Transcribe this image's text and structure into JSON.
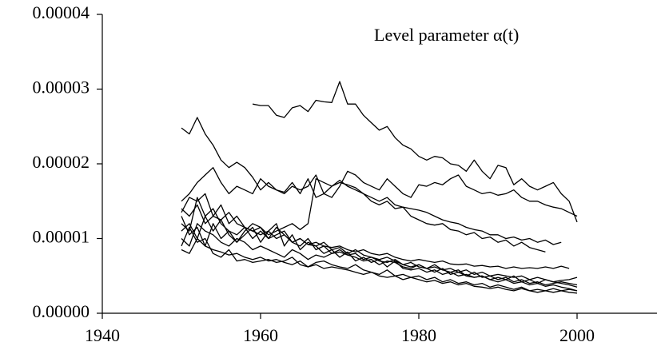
{
  "chart_data": {
    "type": "line",
    "annotation": "Level parameter α(t)",
    "x": [
      1950,
      1951,
      1952,
      1953,
      1954,
      1955,
      1956,
      1957,
      1958,
      1959,
      1960,
      1961,
      1962,
      1963,
      1964,
      1965,
      1966,
      1967,
      1968,
      1969,
      1970,
      1971,
      1972,
      1973,
      1974,
      1975,
      1976,
      1977,
      1978,
      1979,
      1980,
      1981,
      1982,
      1983,
      1984,
      1985,
      1986,
      1987,
      1988,
      1989,
      1990,
      1991,
      1992,
      1993,
      1994,
      1995,
      1996,
      1997,
      1998,
      1999,
      2000
    ],
    "xlim": [
      1940,
      2010
    ],
    "xticks": [
      1940,
      1960,
      1980,
      2000
    ],
    "ylim": [
      0,
      4e-05
    ],
    "yticks": [
      {
        "value": 0,
        "label": "0.00000"
      },
      1e-05,
      2e-05,
      3e-05,
      4e-05
    ],
    "series": [
      {
        "color": "#000000",
        "values": [
          null,
          null,
          null,
          null,
          null,
          null,
          null,
          null,
          null,
          2.8e-05,
          2.78e-05,
          2.78e-05,
          2.65e-05,
          2.62e-05,
          2.75e-05,
          2.78e-05,
          2.7e-05,
          2.85e-05,
          2.83e-05,
          2.82e-05,
          3.1e-05,
          2.8e-05,
          2.8e-05,
          2.65e-05,
          2.55e-05,
          2.45e-05,
          2.5e-05,
          2.35e-05,
          2.25e-05,
          2.2e-05,
          2.1e-05,
          2.05e-05,
          2.1e-05,
          2.08e-05,
          2e-05,
          1.98e-05,
          1.9e-05,
          2.05e-05,
          1.9e-05,
          1.8e-05,
          1.98e-05,
          1.95e-05,
          1.72e-05,
          1.8e-05,
          1.7e-05,
          1.65e-05,
          1.7e-05,
          1.75e-05,
          1.6e-05,
          1.5e-05,
          1.22e-05
        ]
      },
      {
        "color": "#000000",
        "values": [
          2.48e-05,
          2.4e-05,
          2.62e-05,
          2.4e-05,
          2.25e-05,
          2.05e-05,
          1.95e-05,
          2.02e-05,
          1.95e-05,
          1.82e-05,
          1.65e-05,
          1.75e-05,
          1.65e-05,
          1.62e-05,
          1.75e-05,
          1.6e-05,
          1.8e-05,
          1.55e-05,
          1.6e-05,
          1.7e-05,
          1.75e-05,
          1.72e-05,
          1.68e-05,
          1.6e-05,
          1.5e-05,
          1.45e-05,
          1.5e-05,
          1.4e-05,
          1.42e-05,
          1.3e-05,
          1.25e-05,
          1.2e-05,
          1.18e-05,
          1.2e-05,
          1.12e-05,
          1.1e-05,
          1.05e-05,
          1.08e-05,
          1e-05,
          1.02e-05,
          9.5e-06,
          9.8e-06,
          9e-06,
          9.5e-06,
          8.8e-06,
          8.5e-06,
          8.2e-06,
          null,
          null,
          null,
          null
        ]
      },
      {
        "color": "#000000",
        "values": [
          1.5e-05,
          1.6e-05,
          1.75e-05,
          1.85e-05,
          1.95e-05,
          1.75e-05,
          1.6e-05,
          1.7e-05,
          1.65e-05,
          1.6e-05,
          1.8e-05,
          1.7e-05,
          1.65e-05,
          1.6e-05,
          1.7e-05,
          1.65e-05,
          1.7e-05,
          1.85e-05,
          1.6e-05,
          1.55e-05,
          1.7e-05,
          1.9e-05,
          1.85e-05,
          1.75e-05,
          1.7e-05,
          1.65e-05,
          1.8e-05,
          1.7e-05,
          1.6e-05,
          1.55e-05,
          1.72e-05,
          1.7e-05,
          1.75e-05,
          1.72e-05,
          1.8e-05,
          1.85e-05,
          1.7e-05,
          1.65e-05,
          1.6e-05,
          1.62e-05,
          1.58e-05,
          1.6e-05,
          1.65e-05,
          1.55e-05,
          1.5e-05,
          1.5e-05,
          1.45e-05,
          1.42e-05,
          1.4e-05,
          1.35e-05,
          1.3e-05
        ]
      },
      {
        "color": "#000000",
        "values": [
          1.4e-05,
          1.3e-05,
          1.45e-05,
          1.2e-05,
          1.3e-05,
          1.25e-05,
          1.35e-05,
          1.2e-05,
          1.15e-05,
          1.1e-05,
          1.15e-05,
          1.05e-05,
          1.1e-05,
          1.15e-05,
          1.2e-05,
          1.12e-05,
          1.2e-05,
          1.8e-05,
          1.75e-05,
          1.7e-05,
          1.78e-05,
          1.7e-05,
          1.65e-05,
          1.6e-05,
          1.55e-05,
          1.5e-05,
          1.55e-05,
          1.45e-05,
          1.42e-05,
          1.4e-05,
          1.38e-05,
          1.35e-05,
          1.3e-05,
          1.25e-05,
          1.22e-05,
          1.2e-05,
          1.15e-05,
          1.12e-05,
          1.1e-05,
          1.05e-05,
          1.05e-05,
          1e-05,
          1.02e-05,
          9.8e-06,
          1e-05,
          9.5e-06,
          9.8e-06,
          9.2e-06,
          9.5e-06,
          null,
          null
        ]
      },
      {
        "color": "#000000",
        "values": [
          1.35e-05,
          1.55e-05,
          1.5e-05,
          1.6e-05,
          1.3e-05,
          1.45e-05,
          1.2e-05,
          1.3e-05,
          1.15e-05,
          1.1e-05,
          1.05e-05,
          1.1e-05,
          1e-05,
          1.05e-05,
          9.5e-06,
          1e-05,
          9.2e-06,
          9.5e-06,
          9e-06,
          8.8e-06,
          9e-06,
          8.5e-06,
          8.2e-06,
          8.5e-06,
          8e-06,
          7.8e-06,
          8e-06,
          7.5e-06,
          7.2e-06,
          7e-06,
          7.2e-06,
          7e-06,
          6.8e-06,
          7e-06,
          6.6e-06,
          6.5e-06,
          6.6e-06,
          6.3e-06,
          6.4e-06,
          6.2e-06,
          6.3e-06,
          6e-06,
          6.2e-06,
          6e-06,
          6.1e-06,
          6e-06,
          6.2e-06,
          6e-06,
          6.3e-06,
          6e-06,
          null
        ]
      },
      {
        "color": "#000000",
        "values": [
          1e-05,
          9e-06,
          1.2e-05,
          1.1e-05,
          1.05e-05,
          9.5e-06,
          9e-06,
          1e-05,
          9.5e-06,
          8.5e-06,
          9e-06,
          8.5e-06,
          8e-06,
          7.5e-06,
          8.5e-06,
          8e-06,
          7.2e-06,
          7.8e-06,
          7.5e-06,
          8e-06,
          8.2e-06,
          7.8e-06,
          7.5e-06,
          7e-06,
          7.2e-06,
          6.5e-06,
          7e-06,
          6.8e-06,
          6.2e-06,
          6e-06,
          6.5e-06,
          6e-06,
          5.5e-06,
          6e-06,
          5.2e-06,
          5.5e-06,
          5e-06,
          4.8e-06,
          5e-06,
          4.5e-06,
          4.2e-06,
          4.5e-06,
          4e-06,
          4.2e-06,
          3.8e-06,
          4e-06,
          3.6e-06,
          3.8e-06,
          3.5e-06,
          3.3e-06,
          3e-06
        ]
      },
      {
        "color": "#000000",
        "values": [
          8.5e-06,
          8e-06,
          1e-05,
          9e-06,
          8.5e-06,
          8.2e-06,
          7.8e-06,
          8e-06,
          7.5e-06,
          7.2e-06,
          7.5e-06,
          7e-06,
          7.2e-06,
          6.8e-06,
          6.5e-06,
          7e-06,
          6.2e-06,
          6.5e-06,
          6e-06,
          6.2e-06,
          6e-06,
          5.8e-06,
          5.5e-06,
          5.2e-06,
          5.5e-06,
          5e-06,
          4.8e-06,
          5e-06,
          4.5e-06,
          4.8e-06,
          4.5e-06,
          4.2e-06,
          4.4e-06,
          4e-06,
          4.2e-06,
          3.8e-06,
          4e-06,
          3.6e-06,
          3.5e-06,
          3.3e-06,
          3.5e-06,
          3.2e-06,
          3e-06,
          3.3e-06,
          3e-06,
          2.8e-06,
          3e-06,
          2.8e-06,
          3e-06,
          2.8e-06,
          2.7e-06
        ]
      },
      {
        "color": "#000000",
        "values": [
          1.2e-05,
          1.1e-05,
          1.55e-05,
          1.3e-05,
          1.4e-05,
          1.2e-05,
          1.1e-05,
          1.05e-05,
          1.15e-05,
          1e-05,
          1.1e-05,
          1e-05,
          1.15e-05,
          1.05e-05,
          9.5e-06,
          1e-05,
          9.2e-06,
          9e-06,
          9.5e-06,
          8.5e-06,
          8.8e-06,
          8e-06,
          8.5e-06,
          7.8e-06,
          7.5e-06,
          7.2e-06,
          7.5e-06,
          7e-06,
          6.5e-06,
          6.8e-06,
          6.2e-06,
          6e-06,
          6.5e-06,
          5.8e-06,
          5.5e-06,
          5.8e-06,
          5e-06,
          5.5e-06,
          4.8e-06,
          5e-06,
          4.5e-06,
          4.8e-06,
          4.2e-06,
          4.5e-06,
          4e-06,
          4.2e-06,
          3.8e-06,
          4e-06,
          4.2e-06,
          4e-06,
          3.8e-06
        ]
      },
      {
        "color": "#000000",
        "values": [
          1.3e-05,
          1.05e-05,
          1.15e-05,
          9e-06,
          1.2e-05,
          1e-05,
          1.1e-05,
          9.5e-06,
          1.05e-05,
          1.15e-05,
          9.5e-06,
          1.1e-05,
          1.2e-05,
          9e-06,
          1.05e-05,
          8.5e-06,
          9.5e-06,
          9e-06,
          8e-06,
          8.5e-06,
          7.5e-06,
          8.2e-06,
          7e-06,
          7.5e-06,
          6.8e-06,
          7.2e-06,
          6.2e-06,
          7e-06,
          6e-06,
          5.8e-06,
          6e-06,
          5.5e-06,
          5.8e-06,
          5.2e-06,
          5.5e-06,
          5e-06,
          5.2e-06,
          4.8e-06,
          5e-06,
          4.5e-06,
          4.8e-06,
          4.5e-06,
          5e-06,
          4.2e-06,
          4.5e-06,
          4e-06,
          4.5e-06,
          4.2e-06,
          4.4e-06,
          4.5e-06,
          4.8e-06
        ]
      },
      {
        "color": "#000000",
        "values": [
          1.1e-05,
          1.2e-05,
          1e-05,
          1.3e-05,
          1.1e-05,
          1.25e-05,
          1.05e-05,
          9.5e-06,
          1.1e-05,
          1.2e-05,
          1.15e-05,
          1e-05,
          1.05e-05,
          1.1e-05,
          9.5e-06,
          9e-06,
          1e-05,
          8.5e-06,
          9e-06,
          8e-06,
          8.5e-06,
          7.8e-06,
          8e-06,
          7.2e-06,
          7.5e-06,
          7e-06,
          6.8e-06,
          7.2e-06,
          6.5e-06,
          6.2e-06,
          6.5e-06,
          6e-06,
          6.2e-06,
          5.8e-06,
          6e-06,
          5.5e-06,
          5.8e-06,
          5.2e-06,
          5.5e-06,
          5e-06,
          5.2e-06,
          5e-06,
          4.8e-06,
          5e-06,
          4.5e-06,
          4.8e-06,
          4.5e-06,
          4.2e-06,
          4e-06,
          3.8e-06,
          3.5e-06
        ]
      },
      {
        "color": "#000000",
        "values": [
          9e-06,
          1.15e-05,
          9.5e-06,
          1e-05,
          8e-06,
          7.5e-06,
          8.5e-06,
          7e-06,
          7.2e-06,
          6.8e-06,
          7e-06,
          7.2e-06,
          6.8e-06,
          7e-06,
          7.5e-06,
          6.5e-06,
          6.2e-06,
          6.8e-06,
          7e-06,
          6.5e-06,
          6.2e-06,
          6e-06,
          6.5e-06,
          5.8e-06,
          5.5e-06,
          5.2e-06,
          5.8e-06,
          5e-06,
          5.2e-06,
          4.8e-06,
          5e-06,
          4.5e-06,
          4.8e-06,
          4.2e-06,
          4.5e-06,
          4e-06,
          4.2e-06,
          3.8e-06,
          4e-06,
          3.5e-06,
          3.8e-06,
          3.5e-06,
          3.2e-06,
          3.5e-06,
          3e-06,
          3.2e-06,
          3e-06,
          3.3e-06,
          3e-06,
          3.2e-06,
          3e-06
        ]
      }
    ]
  }
}
